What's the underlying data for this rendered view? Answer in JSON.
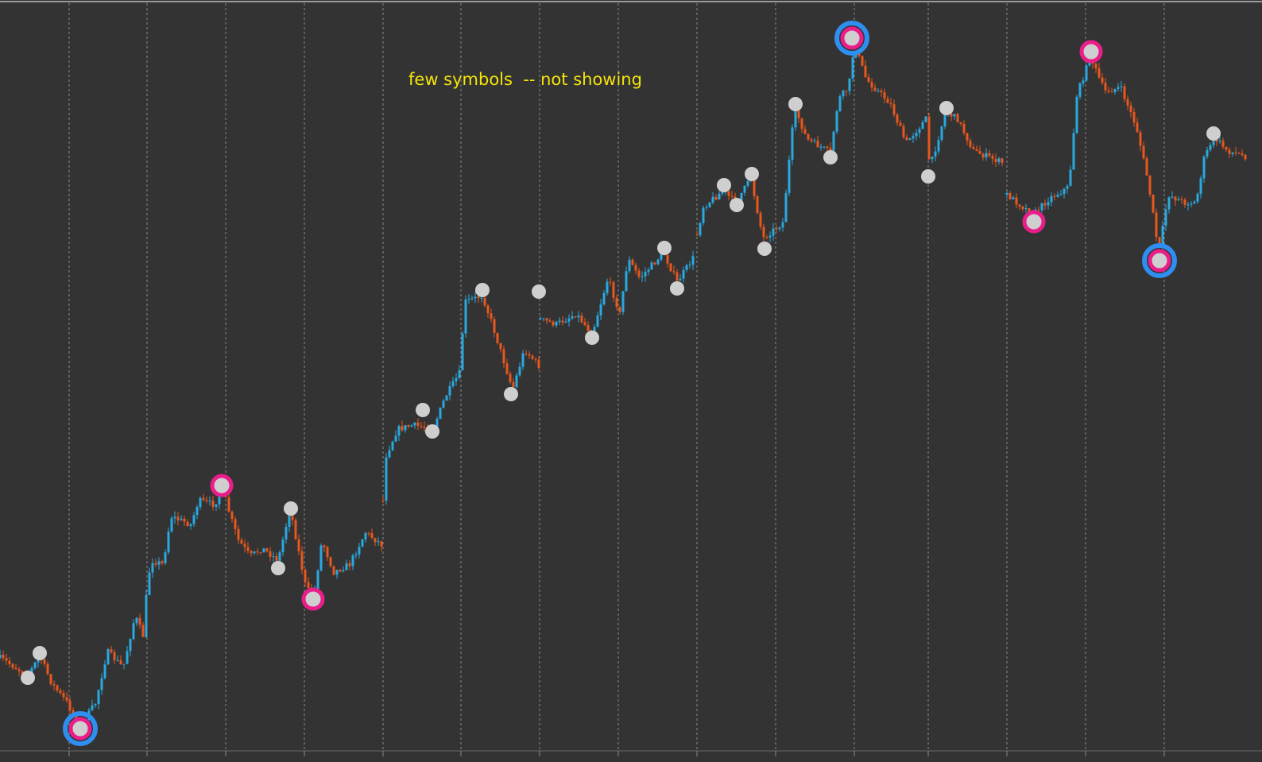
{
  "annotation": "few symbols  -- not showing"
}
